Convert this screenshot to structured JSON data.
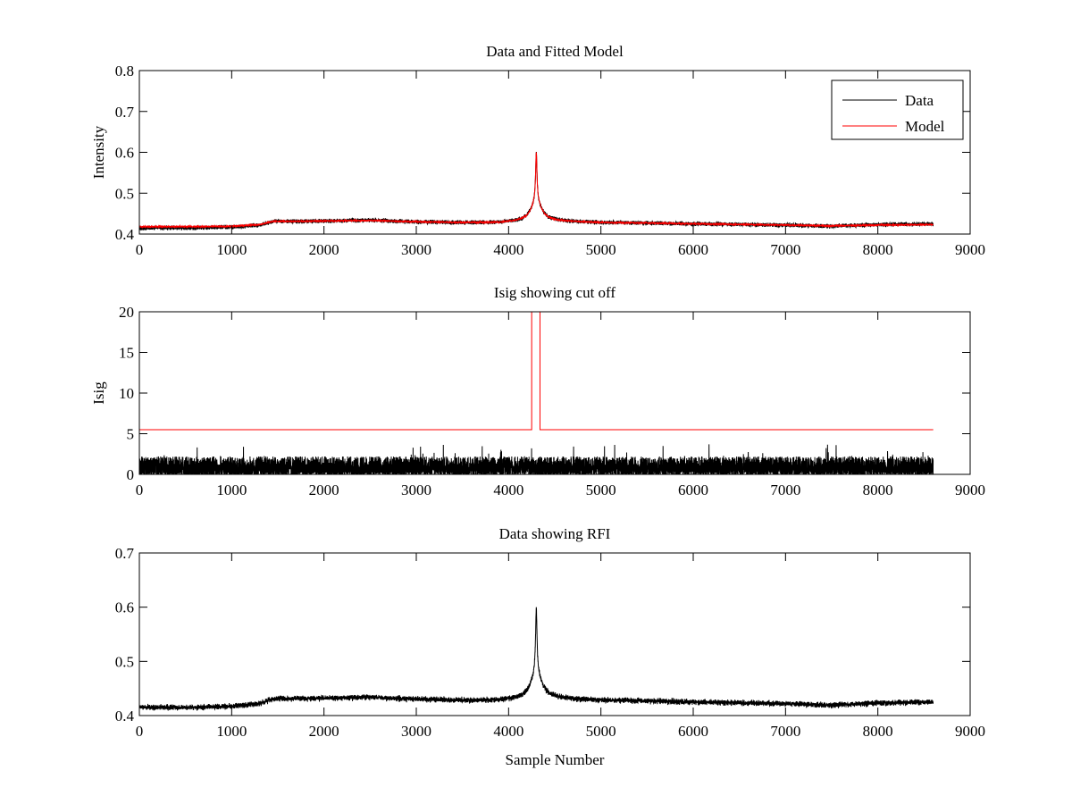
{
  "chart_data": [
    {
      "type": "line",
      "title": "Data and Fitted Model",
      "xlabel": "",
      "ylabel": "Intensity",
      "xlim": [
        0,
        9000
      ],
      "ylim": [
        0.4,
        0.8
      ],
      "xticks": [
        0,
        1000,
        2000,
        3000,
        4000,
        5000,
        6000,
        7000,
        8000,
        9000
      ],
      "yticks": [
        0.4,
        0.5,
        0.6,
        0.7,
        0.8
      ],
      "ytick_labels": [
        "0.4",
        "0.5",
        "0.6",
        "0.7",
        "0.8"
      ],
      "grid": false,
      "legend": {
        "placement": "top-right",
        "entries": [
          {
            "name": "Data",
            "color": "#000000"
          },
          {
            "name": "Model",
            "color": "#ff0000"
          }
        ]
      },
      "series": [
        {
          "name": "Data",
          "color": "#000000",
          "n_samples": 8600,
          "baseline_points": {
            "x": [
              0,
              600,
              1000,
              1300,
              1450,
              2000,
              2500,
              3000,
              3500,
              3900,
              4100,
              4300,
              4500,
              4700,
              5000,
              5500,
              6000,
              7000,
              7500,
              8000,
              8600
            ],
            "y": [
              0.415,
              0.415,
              0.417,
              0.422,
              0.431,
              0.432,
              0.434,
              0.43,
              0.428,
              0.428,
              0.43,
              0.43,
              0.432,
              0.43,
              0.428,
              0.427,
              0.425,
              0.422,
              0.419,
              0.423,
              0.425
            ]
          },
          "peak": {
            "x": 4300,
            "y": 0.6
          },
          "noise_amplitude": 0.004
        },
        {
          "name": "Model",
          "color": "#ff0000",
          "n_samples": 8600,
          "baseline_points": {
            "x": [
              0,
              600,
              1000,
              1300,
              1450,
              2000,
              2500,
              3000,
              3500,
              3900,
              4100,
              4300,
              4500,
              4700,
              5000,
              5500,
              6000,
              7000,
              7500,
              8000,
              8600
            ],
            "y": [
              0.418,
              0.418,
              0.419,
              0.423,
              0.431,
              0.432,
              0.433,
              0.43,
              0.428,
              0.428,
              0.43,
              0.43,
              0.431,
              0.43,
              0.428,
              0.427,
              0.425,
              0.422,
              0.42,
              0.422,
              0.423
            ]
          },
          "peak": {
            "x": 4300,
            "y": 0.6
          },
          "noise_amplitude": 0.0015
        }
      ]
    },
    {
      "type": "line",
      "title": "Isig showing cut off",
      "xlabel": "",
      "ylabel": "Isig",
      "xlim": [
        0,
        9000
      ],
      "ylim": [
        0,
        20
      ],
      "xticks": [
        0,
        1000,
        2000,
        3000,
        4000,
        5000,
        6000,
        7000,
        8000,
        9000
      ],
      "yticks": [
        0,
        5,
        10,
        15,
        20
      ],
      "ytick_labels": [
        "0",
        "5",
        "10",
        "15",
        "20"
      ],
      "grid": false,
      "series": [
        {
          "name": "",
          "color": "#000000",
          "n_samples": 8600,
          "range": [
            0,
            3.7
          ],
          "typical_max": 2.2
        },
        {
          "name": "",
          "color": "#ff0000",
          "x": [
            0,
            4250,
            4250,
            4340,
            4340,
            8600
          ],
          "y": [
            5.5,
            5.5,
            20,
            20,
            5.5,
            5.5
          ]
        }
      ]
    },
    {
      "type": "line",
      "title": "Data showing RFI",
      "xlabel": "Sample Number",
      "ylabel": "",
      "xlim": [
        0,
        9000
      ],
      "ylim": [
        0.4,
        0.7
      ],
      "xticks": [
        0,
        1000,
        2000,
        3000,
        4000,
        5000,
        6000,
        7000,
        8000,
        9000
      ],
      "yticks": [
        0.4,
        0.5,
        0.6,
        0.7
      ],
      "ytick_labels": [
        "0.4",
        "0.5",
        "0.6",
        "0.7"
      ],
      "grid": false,
      "series": [
        {
          "name": "",
          "color": "#000000",
          "n_samples": 8600,
          "baseline_points": {
            "x": [
              0,
              600,
              1000,
              1300,
              1450,
              2000,
              2500,
              3000,
              3500,
              3900,
              4100,
              4300,
              4500,
              4700,
              5000,
              5500,
              6000,
              7000,
              7500,
              8000,
              8600
            ],
            "y": [
              0.415,
              0.415,
              0.417,
              0.422,
              0.431,
              0.432,
              0.434,
              0.43,
              0.428,
              0.428,
              0.43,
              0.43,
              0.432,
              0.43,
              0.428,
              0.427,
              0.425,
              0.422,
              0.419,
              0.423,
              0.425
            ]
          },
          "peak": {
            "x": 4300,
            "y": 0.6
          },
          "noise_amplitude": 0.004
        }
      ]
    }
  ]
}
